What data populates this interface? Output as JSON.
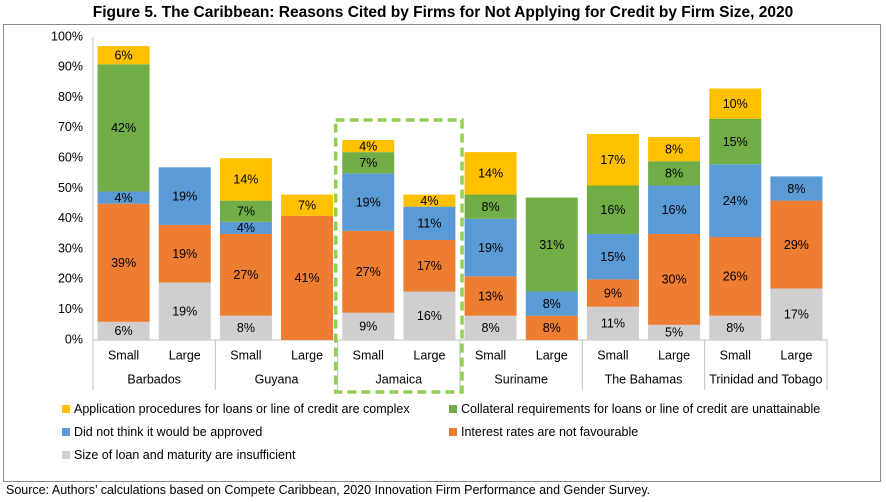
{
  "title": "Figure 5. The Caribbean: Reasons Cited by Firms for Not Applying for Credit by Firm Size, 2020",
  "source": "Source: Authors’ calculations based on Compete Caribbean, 2020 Innovation Firm Performance and Gender Survey.",
  "colors": {
    "size_loan": "#d0cece",
    "interest": "#ed7d31",
    "not_approved": "#5b9bd5",
    "collateral": "#70ad47",
    "application": "#ffc000",
    "highlight": "#92d050"
  },
  "chart_data": {
    "type": "bar",
    "stacked": true,
    "title": "Figure 5. The Caribbean: Reasons Cited by Firms for Not Applying for Credit by Firm Size, 2020",
    "ylim": [
      0,
      100
    ],
    "yticks": [
      "0%",
      "10%",
      "20%",
      "30%",
      "40%",
      "50%",
      "60%",
      "70%",
      "80%",
      "90%",
      "100%"
    ],
    "groups": [
      {
        "name": "Barbados",
        "bars": [
          "Small",
          "Large"
        ]
      },
      {
        "name": "Guyana",
        "bars": [
          "Small",
          "Large"
        ]
      },
      {
        "name": "Jamaica",
        "bars": [
          "Small",
          "Large"
        ],
        "highlighted": true
      },
      {
        "name": "Suriname",
        "bars": [
          "Small",
          "Large"
        ]
      },
      {
        "name": "The Bahamas",
        "bars": [
          "Small",
          "Large"
        ]
      },
      {
        "name": "Trinidad and Tobago",
        "bars": [
          "Small",
          "Large"
        ]
      }
    ],
    "series": [
      {
        "key": "size_loan",
        "name": "Size of loan and maturity are insufficient",
        "values": [
          6,
          19,
          8,
          0,
          9,
          16,
          8,
          0,
          11,
          5,
          8,
          17
        ],
        "labels": [
          "6%",
          "19%",
          "8%",
          "",
          "9%",
          "16%",
          "8%",
          "",
          "11%",
          "5%",
          "8%",
          "17%"
        ]
      },
      {
        "key": "interest",
        "name": "Interest rates are not favourable",
        "values": [
          39,
          19,
          27,
          41,
          27,
          17,
          13,
          8,
          9,
          30,
          26,
          29
        ],
        "labels": [
          "39%",
          "19%",
          "27%",
          "41%",
          "27%",
          "17%",
          "13%",
          "8%",
          "9%",
          "30%",
          "26%",
          "29%"
        ]
      },
      {
        "key": "not_approved",
        "name": "Did not think it would be approved",
        "values": [
          4,
          19,
          4,
          0,
          19,
          11,
          19,
          8,
          15,
          16,
          24,
          8
        ],
        "labels": [
          "4%",
          "19%",
          "4%",
          "",
          "19%",
          "11%",
          "19%",
          "8%",
          "15%",
          "16%",
          "24%",
          "8%"
        ]
      },
      {
        "key": "collateral",
        "name": "Collateral requirements for loans or line of credit are unattainable",
        "values": [
          42,
          0,
          7,
          0,
          7,
          0,
          8,
          31,
          16,
          8,
          15,
          0
        ],
        "labels": [
          "42%",
          "",
          "7%",
          "",
          "7%",
          "",
          "8%",
          "31%",
          "16%",
          "8%",
          "15%",
          ""
        ]
      },
      {
        "key": "application",
        "name": "Application procedures for loans or line of credit are complex",
        "values": [
          6,
          0,
          14,
          7,
          4,
          4,
          14,
          0,
          17,
          8,
          10,
          0
        ],
        "labels": [
          "6%",
          "",
          "14%",
          "7%",
          "4%",
          "4%",
          "14%",
          "",
          "17%",
          "8%",
          "10%",
          ""
        ]
      }
    ],
    "legend": [
      {
        "key": "application",
        "label": "Application procedures for loans or line of credit are complex"
      },
      {
        "key": "collateral",
        "label": "Collateral requirements for loans or line of credit are unattainable"
      },
      {
        "key": "not_approved",
        "label": "Did not think it would be approved"
      },
      {
        "key": "interest",
        "label": "Interest rates are not favourable"
      },
      {
        "key": "size_loan",
        "label": "Size of loan and maturity are insufficient"
      }
    ]
  }
}
